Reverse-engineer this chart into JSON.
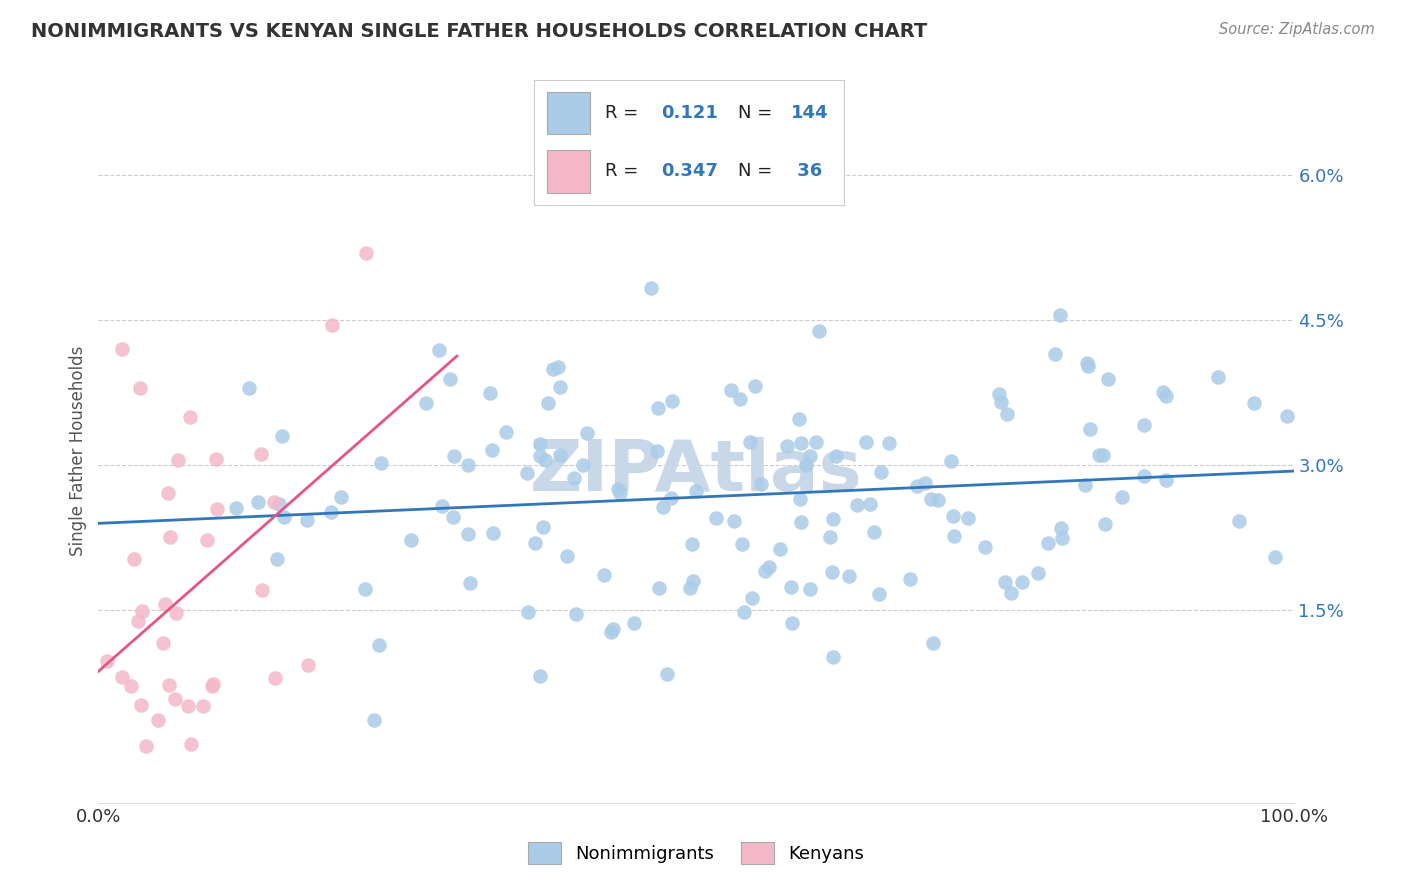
{
  "title": "NONIMMIGRANTS VS KENYAN SINGLE FATHER HOUSEHOLDS CORRELATION CHART",
  "source": "Source: ZipAtlas.com",
  "ylabel": "Single Father Households",
  "ytick_labels": [
    "1.5%",
    "3.0%",
    "4.5%",
    "6.0%"
  ],
  "ytick_values": [
    0.015,
    0.03,
    0.045,
    0.06
  ],
  "xlim": [
    0.0,
    1.0
  ],
  "ylim": [
    -0.005,
    0.068
  ],
  "legend_label1": "Nonimmigrants",
  "legend_label2": "Kenyans",
  "r1": 0.121,
  "n1": 144,
  "r2": 0.347,
  "n2": 36,
  "blue_fill": "#aacce8",
  "pink_fill": "#f4b8c8",
  "blue_line_color": "#3377bb",
  "pink_line_color": "#e85585",
  "watermark_text": "ZIPAtlas",
  "watermark_color": "#c8d8e8",
  "background_color": "#ffffff",
  "grid_color": "#cccccc",
  "title_color": "#333333",
  "source_color": "#888888",
  "label_color": "#555555",
  "tick_color": "#3377bb"
}
